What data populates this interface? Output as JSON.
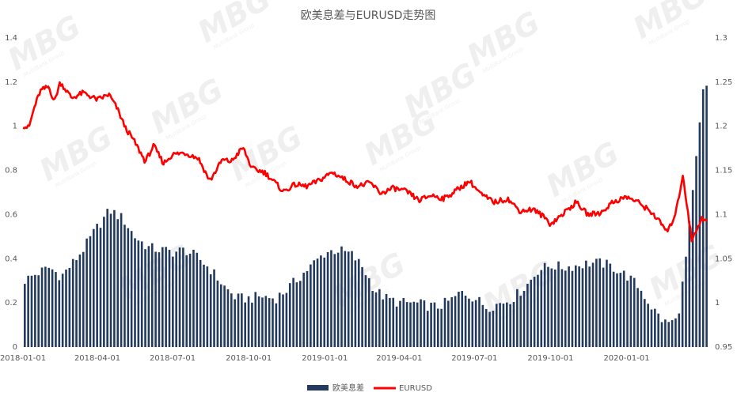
{
  "chart_data": {
    "type": "bar+line",
    "title": "欧美息差与EURUSD走势图",
    "x_ticks": [
      "2018-01-01",
      "2018-04-01",
      "2018-07-01",
      "2018-10-01",
      "2019-01-01",
      "2019-04-01",
      "2019-07-01",
      "2019-10-01",
      "2020-01-01"
    ],
    "x_range": [
      "2018-01-01",
      "2020-04-10"
    ],
    "left_axis": {
      "ylim": [
        0,
        1.4
      ],
      "ticks": [
        "0",
        "0.2",
        "0.4",
        "0.6",
        "0.8",
        "1",
        "1.2",
        "1.4"
      ]
    },
    "right_axis": {
      "ylim": [
        0.95,
        1.3
      ],
      "ticks": [
        "0.95",
        "1",
        "1.05",
        "1.1",
        "1.15",
        "1.2",
        "1.25",
        "1.3"
      ]
    },
    "grid": false,
    "legend_position": "bottom-center",
    "series": [
      {
        "name": "欧美息差",
        "type": "bar",
        "axis": "left",
        "color": "#233a5e",
        "points": [
          [
            "2018-01-01",
            0.3
          ],
          [
            "2018-01-15",
            0.33
          ],
          [
            "2018-02-01",
            0.36
          ],
          [
            "2018-02-15",
            0.32
          ],
          [
            "2018-03-01",
            0.38
          ],
          [
            "2018-03-15",
            0.45
          ],
          [
            "2018-04-01",
            0.55
          ],
          [
            "2018-04-15",
            0.62
          ],
          [
            "2018-05-01",
            0.58
          ],
          [
            "2018-05-15",
            0.5
          ],
          [
            "2018-06-01",
            0.45
          ],
          [
            "2018-06-15",
            0.44
          ],
          [
            "2018-07-01",
            0.43
          ],
          [
            "2018-07-15",
            0.44
          ],
          [
            "2018-08-01",
            0.4
          ],
          [
            "2018-08-15",
            0.35
          ],
          [
            "2018-09-01",
            0.27
          ],
          [
            "2018-09-15",
            0.22
          ],
          [
            "2018-10-01",
            0.22
          ],
          [
            "2018-10-15",
            0.23
          ],
          [
            "2018-11-01",
            0.22
          ],
          [
            "2018-11-15",
            0.26
          ],
          [
            "2018-12-01",
            0.32
          ],
          [
            "2018-12-15",
            0.37
          ],
          [
            "2019-01-01",
            0.43
          ],
          [
            "2019-01-15",
            0.44
          ],
          [
            "2019-02-01",
            0.42
          ],
          [
            "2019-02-15",
            0.36
          ],
          [
            "2019-03-01",
            0.26
          ],
          [
            "2019-03-15",
            0.22
          ],
          [
            "2019-04-01",
            0.2
          ],
          [
            "2019-04-15",
            0.2
          ],
          [
            "2019-05-01",
            0.19
          ],
          [
            "2019-05-15",
            0.18
          ],
          [
            "2019-06-01",
            0.21
          ],
          [
            "2019-06-15",
            0.25
          ],
          [
            "2019-07-01",
            0.22
          ],
          [
            "2019-07-15",
            0.18
          ],
          [
            "2019-08-01",
            0.2
          ],
          [
            "2019-08-15",
            0.22
          ],
          [
            "2019-09-01",
            0.28
          ],
          [
            "2019-09-15",
            0.35
          ],
          [
            "2019-10-01",
            0.37
          ],
          [
            "2019-10-15",
            0.36
          ],
          [
            "2019-11-01",
            0.37
          ],
          [
            "2019-11-15",
            0.38
          ],
          [
            "2019-12-01",
            0.38
          ],
          [
            "2019-12-15",
            0.36
          ],
          [
            "2020-01-01",
            0.32
          ],
          [
            "2020-01-15",
            0.27
          ],
          [
            "2020-02-01",
            0.17
          ],
          [
            "2020-02-15",
            0.11
          ],
          [
            "2020-03-01",
            0.12
          ],
          [
            "2020-03-10",
            0.35
          ],
          [
            "2020-03-20",
            0.7
          ],
          [
            "2020-04-01",
            1.15
          ],
          [
            "2020-04-10",
            1.21
          ]
        ]
      },
      {
        "name": "EURUSD",
        "type": "line",
        "axis": "right",
        "color": "#ff0000",
        "points": [
          [
            "2018-01-01",
            1.201
          ],
          [
            "2018-01-08",
            1.198
          ],
          [
            "2018-01-15",
            1.222
          ],
          [
            "2018-01-22",
            1.24
          ],
          [
            "2018-02-01",
            1.245
          ],
          [
            "2018-02-08",
            1.228
          ],
          [
            "2018-02-15",
            1.25
          ],
          [
            "2018-03-01",
            1.232
          ],
          [
            "2018-03-15",
            1.238
          ],
          [
            "2018-04-01",
            1.23
          ],
          [
            "2018-04-15",
            1.236
          ],
          [
            "2018-04-25",
            1.22
          ],
          [
            "2018-05-05",
            1.198
          ],
          [
            "2018-05-15",
            1.184
          ],
          [
            "2018-05-29",
            1.16
          ],
          [
            "2018-06-08",
            1.178
          ],
          [
            "2018-06-20",
            1.158
          ],
          [
            "2018-07-01",
            1.168
          ],
          [
            "2018-07-15",
            1.17
          ],
          [
            "2018-08-01",
            1.164
          ],
          [
            "2018-08-15",
            1.138
          ],
          [
            "2018-08-30",
            1.162
          ],
          [
            "2018-09-10",
            1.16
          ],
          [
            "2018-09-24",
            1.176
          ],
          [
            "2018-10-05",
            1.152
          ],
          [
            "2018-10-20",
            1.148
          ],
          [
            "2018-11-01",
            1.137
          ],
          [
            "2018-11-12",
            1.126
          ],
          [
            "2018-11-26",
            1.134
          ],
          [
            "2018-12-10",
            1.132
          ],
          [
            "2018-12-24",
            1.138
          ],
          [
            "2019-01-10",
            1.148
          ],
          [
            "2019-01-25",
            1.14
          ],
          [
            "2019-02-10",
            1.132
          ],
          [
            "2019-02-25",
            1.136
          ],
          [
            "2019-03-10",
            1.124
          ],
          [
            "2019-03-25",
            1.13
          ],
          [
            "2019-04-10",
            1.126
          ],
          [
            "2019-04-25",
            1.116
          ],
          [
            "2019-05-10",
            1.122
          ],
          [
            "2019-05-25",
            1.118
          ],
          [
            "2019-06-10",
            1.128
          ],
          [
            "2019-06-25",
            1.138
          ],
          [
            "2019-07-10",
            1.122
          ],
          [
            "2019-07-25",
            1.114
          ],
          [
            "2019-08-10",
            1.118
          ],
          [
            "2019-08-25",
            1.104
          ],
          [
            "2019-09-10",
            1.106
          ],
          [
            "2019-09-25",
            1.096
          ],
          [
            "2019-10-01",
            1.089
          ],
          [
            "2019-10-15",
            1.1
          ],
          [
            "2019-11-01",
            1.114
          ],
          [
            "2019-11-15",
            1.1
          ],
          [
            "2019-12-01",
            1.102
          ],
          [
            "2019-12-15",
            1.114
          ],
          [
            "2020-01-01",
            1.12
          ],
          [
            "2020-01-15",
            1.114
          ],
          [
            "2020-02-01",
            1.102
          ],
          [
            "2020-02-20",
            1.08
          ],
          [
            "2020-03-01",
            1.104
          ],
          [
            "2020-03-09",
            1.145
          ],
          [
            "2020-03-20",
            1.07
          ],
          [
            "2020-04-01",
            1.097
          ],
          [
            "2020-04-10",
            1.088
          ]
        ]
      }
    ]
  }
}
